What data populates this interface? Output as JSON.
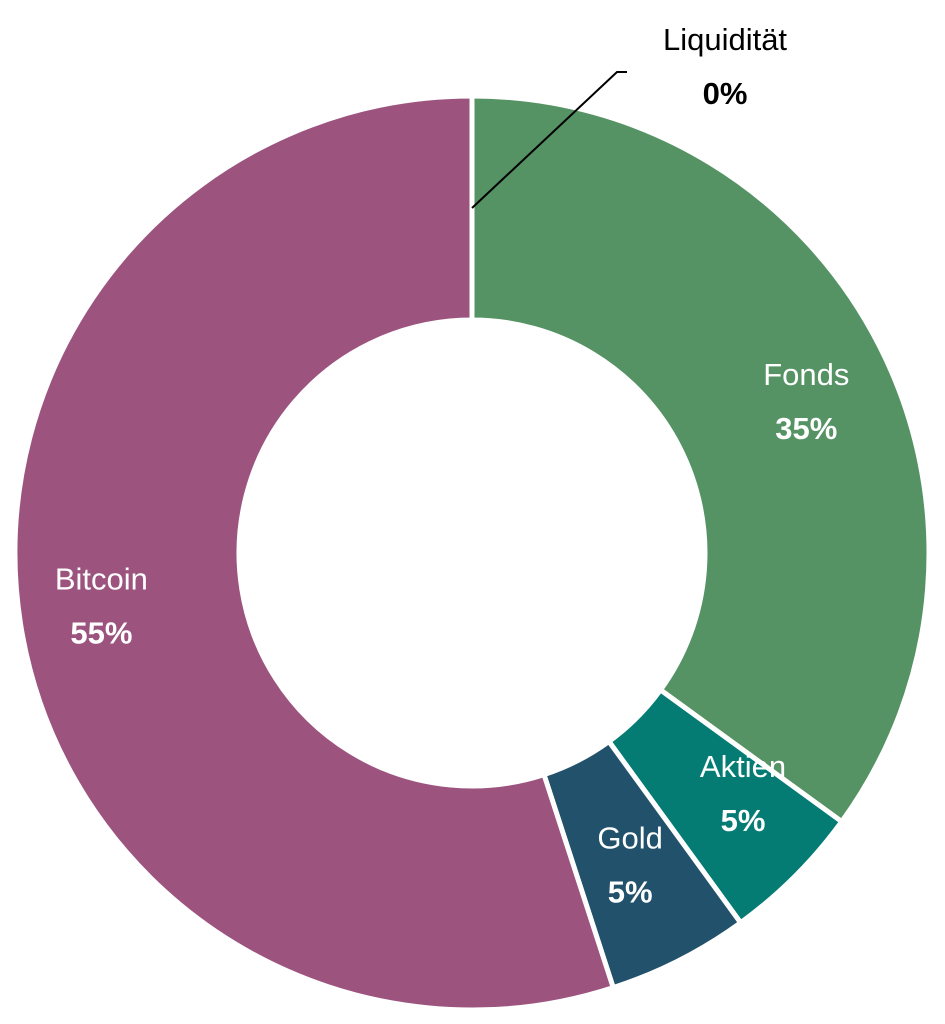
{
  "chart_data": {
    "type": "pie",
    "variant": "donut",
    "start_angle_deg": 0,
    "direction": "clockwise",
    "slices": [
      {
        "name": "Liquidität",
        "value": 0,
        "label": "0%",
        "color": "#4E7F5A",
        "label_color": "#000000",
        "label_placement": "outside-leader"
      },
      {
        "name": "Fonds",
        "value": 35,
        "label": "35%",
        "color": "#559364",
        "label_color": "#ffffff",
        "label_placement": "inside"
      },
      {
        "name": "Aktien",
        "value": 5,
        "label": "5%",
        "color": "#047C74",
        "label_color": "#ffffff",
        "label_placement": "inside"
      },
      {
        "name": "Gold",
        "value": 5,
        "label": "5%",
        "color": "#22526B",
        "label_color": "#ffffff",
        "label_placement": "inside"
      },
      {
        "name": "Bitcoin",
        "value": 55,
        "label": "55%",
        "color": "#9C547F",
        "label_color": "#ffffff",
        "label_placement": "inside"
      }
    ],
    "title": "",
    "legend": "none",
    "background": "#ffffff",
    "separator_color": "#ffffff"
  }
}
